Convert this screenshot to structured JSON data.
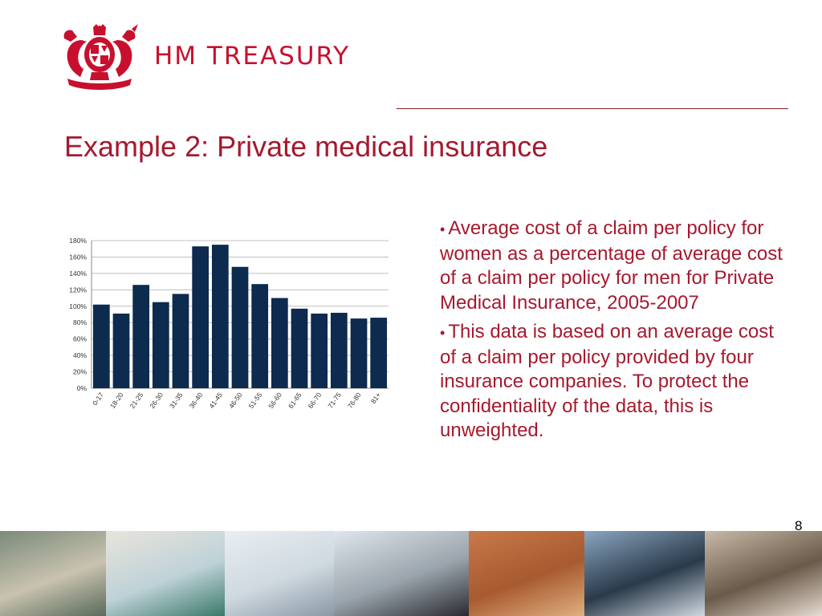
{
  "header": {
    "brand": "HM TREASURY",
    "title": "Example 2: Private medical insurance",
    "page_number": "8"
  },
  "bullets": [
    {
      "marker": "•",
      "text": "Average cost of a claim per policy for women as a percentage of average cost of a claim per policy for men for Private Medical Insurance, 2005-2007"
    },
    {
      "marker": "•",
      "text": "This data is based on an average cost of a claim per policy provided by four insurance companies. To protect the confidentiality of the data, this is unweighted."
    }
  ],
  "chart_data": {
    "type": "bar",
    "title": "",
    "xlabel": "",
    "ylabel": "",
    "categories": [
      "0-17",
      "18-20",
      "21-25",
      "26-30",
      "31-35",
      "36-40",
      "41-45",
      "46-50",
      "51-55",
      "56-60",
      "61-65",
      "66-70",
      "71-75",
      "76-80",
      "81+"
    ],
    "values": [
      102,
      91,
      126,
      105,
      115,
      173,
      175,
      148,
      127,
      110,
      97,
      91,
      92,
      85,
      86
    ],
    "ylim": [
      0,
      180
    ],
    "yticks": [
      "0%",
      "20%",
      "40%",
      "60%",
      "80%",
      "100%",
      "120%",
      "140%",
      "160%",
      "180%"
    ],
    "grid": true,
    "bar_color": "#0d2a4f"
  },
  "colors": {
    "accent": "#a6192e",
    "brand": "#c8102e",
    "bar": "#0d2a4f"
  },
  "photos": [
    {
      "name": "photo-building-courtyard",
      "colors": [
        "#7a8a7a",
        "#c9c2b0",
        "#5a6a5a"
      ]
    },
    {
      "name": "photo-meeting-room",
      "colors": [
        "#e8e4dc",
        "#bfd2d8",
        "#3a7a6a"
      ]
    },
    {
      "name": "photo-london-eye",
      "colors": [
        "#e9eef2",
        "#cfd9e0",
        "#8a9aa6"
      ]
    },
    {
      "name": "photo-commuters",
      "colors": [
        "#dfe6ec",
        "#9aa4ac",
        "#2a2a30"
      ]
    },
    {
      "name": "photo-brick-building",
      "colors": [
        "#c87a4a",
        "#a85a30",
        "#e0b080"
      ]
    },
    {
      "name": "photo-walking-people",
      "colors": [
        "#8aa6c0",
        "#2a3a4a",
        "#d0d8e0"
      ]
    },
    {
      "name": "photo-audience",
      "colors": [
        "#c9b9a8",
        "#6a5a4a",
        "#e6dcd0"
      ]
    }
  ]
}
